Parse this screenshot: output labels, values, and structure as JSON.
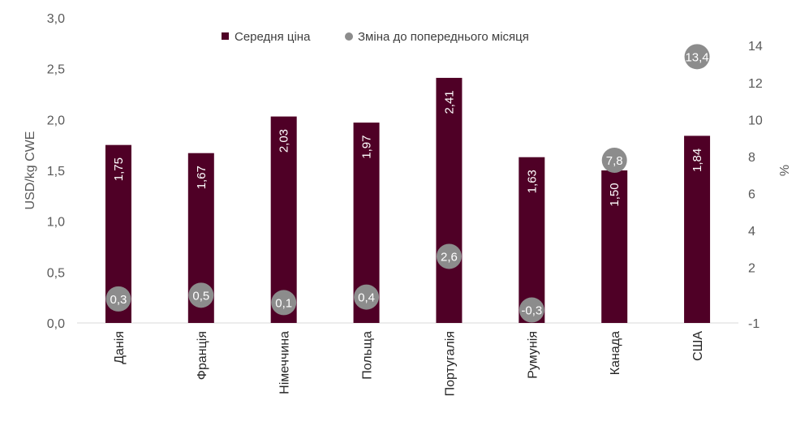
{
  "chart_data": {
    "type": "bar",
    "categories": [
      "Данія",
      "Франція",
      "Німеччина",
      "Польща",
      "Португалія",
      "Румунія",
      "Канада",
      "США"
    ],
    "series": [
      {
        "name": "Середня ціна",
        "type": "bar",
        "axis": "left",
        "color": "#4f0026",
        "values": [
          1.75,
          1.67,
          2.03,
          1.97,
          2.41,
          1.63,
          1.5,
          1.84
        ],
        "labels": [
          "1,75",
          "1,67",
          "2,03",
          "1,97",
          "2,41",
          "1,63",
          "1,50",
          "1,84"
        ]
      },
      {
        "name": "Зміна до попереднього місяця",
        "type": "scatter",
        "axis": "right",
        "color": "#8c8c8c",
        "values": [
          0.3,
          0.5,
          0.1,
          0.4,
          2.6,
          -0.3,
          7.8,
          13.4
        ],
        "labels": [
          "0,3",
          "0,5",
          "0,1",
          "0,4",
          "2,6",
          "-0,3",
          "7,8",
          "13,4"
        ]
      }
    ],
    "ylabel": "USD/kg CWE",
    "y2label": "%",
    "ylim": [
      0,
      3
    ],
    "yticks": [
      "0,0",
      "0,5",
      "1,0",
      "1,5",
      "2,0",
      "2,5",
      "3,0"
    ],
    "y2lim": [
      -1,
      15.5
    ],
    "y2ticks": [
      -1,
      2,
      4,
      6,
      8,
      10,
      12,
      14
    ],
    "grid": false,
    "legend_position": "top-center"
  }
}
